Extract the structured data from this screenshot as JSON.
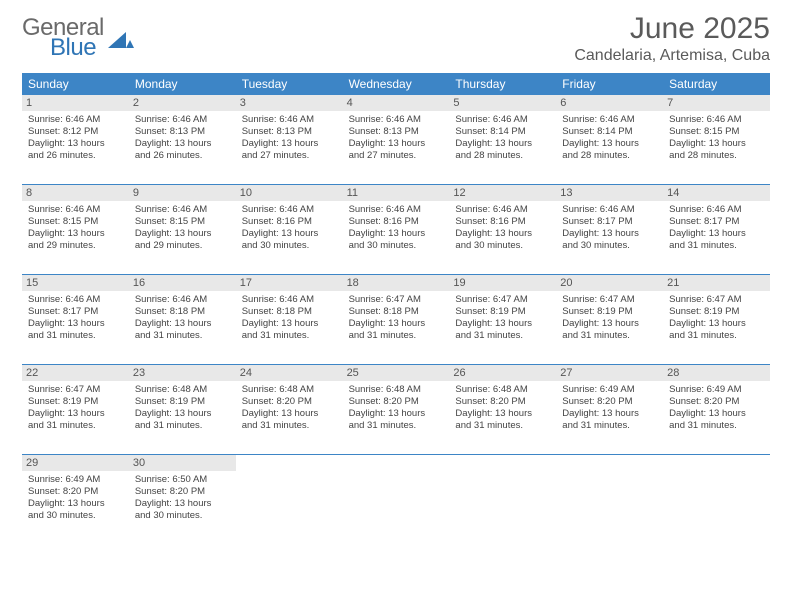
{
  "logo": {
    "word1": "General",
    "word2": "Blue",
    "mark_color": "#2f75b5"
  },
  "title": "June 2025",
  "location": "Candelaria, Artemisa, Cuba",
  "colors": {
    "header_bg": "#3d85c6",
    "header_text": "#ffffff",
    "daynum_bg": "#e8e8e8",
    "week_border": "#3d85c6",
    "text": "#444444"
  },
  "weekdays": [
    "Sunday",
    "Monday",
    "Tuesday",
    "Wednesday",
    "Thursday",
    "Friday",
    "Saturday"
  ],
  "weeks": [
    [
      {
        "n": "1",
        "sr": "Sunrise: 6:46 AM",
        "ss": "Sunset: 8:12 PM",
        "dl": "Daylight: 13 hours and 26 minutes."
      },
      {
        "n": "2",
        "sr": "Sunrise: 6:46 AM",
        "ss": "Sunset: 8:13 PM",
        "dl": "Daylight: 13 hours and 26 minutes."
      },
      {
        "n": "3",
        "sr": "Sunrise: 6:46 AM",
        "ss": "Sunset: 8:13 PM",
        "dl": "Daylight: 13 hours and 27 minutes."
      },
      {
        "n": "4",
        "sr": "Sunrise: 6:46 AM",
        "ss": "Sunset: 8:13 PM",
        "dl": "Daylight: 13 hours and 27 minutes."
      },
      {
        "n": "5",
        "sr": "Sunrise: 6:46 AM",
        "ss": "Sunset: 8:14 PM",
        "dl": "Daylight: 13 hours and 28 minutes."
      },
      {
        "n": "6",
        "sr": "Sunrise: 6:46 AM",
        "ss": "Sunset: 8:14 PM",
        "dl": "Daylight: 13 hours and 28 minutes."
      },
      {
        "n": "7",
        "sr": "Sunrise: 6:46 AM",
        "ss": "Sunset: 8:15 PM",
        "dl": "Daylight: 13 hours and 28 minutes."
      }
    ],
    [
      {
        "n": "8",
        "sr": "Sunrise: 6:46 AM",
        "ss": "Sunset: 8:15 PM",
        "dl": "Daylight: 13 hours and 29 minutes."
      },
      {
        "n": "9",
        "sr": "Sunrise: 6:46 AM",
        "ss": "Sunset: 8:15 PM",
        "dl": "Daylight: 13 hours and 29 minutes."
      },
      {
        "n": "10",
        "sr": "Sunrise: 6:46 AM",
        "ss": "Sunset: 8:16 PM",
        "dl": "Daylight: 13 hours and 30 minutes."
      },
      {
        "n": "11",
        "sr": "Sunrise: 6:46 AM",
        "ss": "Sunset: 8:16 PM",
        "dl": "Daylight: 13 hours and 30 minutes."
      },
      {
        "n": "12",
        "sr": "Sunrise: 6:46 AM",
        "ss": "Sunset: 8:16 PM",
        "dl": "Daylight: 13 hours and 30 minutes."
      },
      {
        "n": "13",
        "sr": "Sunrise: 6:46 AM",
        "ss": "Sunset: 8:17 PM",
        "dl": "Daylight: 13 hours and 30 minutes."
      },
      {
        "n": "14",
        "sr": "Sunrise: 6:46 AM",
        "ss": "Sunset: 8:17 PM",
        "dl": "Daylight: 13 hours and 31 minutes."
      }
    ],
    [
      {
        "n": "15",
        "sr": "Sunrise: 6:46 AM",
        "ss": "Sunset: 8:17 PM",
        "dl": "Daylight: 13 hours and 31 minutes."
      },
      {
        "n": "16",
        "sr": "Sunrise: 6:46 AM",
        "ss": "Sunset: 8:18 PM",
        "dl": "Daylight: 13 hours and 31 minutes."
      },
      {
        "n": "17",
        "sr": "Sunrise: 6:46 AM",
        "ss": "Sunset: 8:18 PM",
        "dl": "Daylight: 13 hours and 31 minutes."
      },
      {
        "n": "18",
        "sr": "Sunrise: 6:47 AM",
        "ss": "Sunset: 8:18 PM",
        "dl": "Daylight: 13 hours and 31 minutes."
      },
      {
        "n": "19",
        "sr": "Sunrise: 6:47 AM",
        "ss": "Sunset: 8:19 PM",
        "dl": "Daylight: 13 hours and 31 minutes."
      },
      {
        "n": "20",
        "sr": "Sunrise: 6:47 AM",
        "ss": "Sunset: 8:19 PM",
        "dl": "Daylight: 13 hours and 31 minutes."
      },
      {
        "n": "21",
        "sr": "Sunrise: 6:47 AM",
        "ss": "Sunset: 8:19 PM",
        "dl": "Daylight: 13 hours and 31 minutes."
      }
    ],
    [
      {
        "n": "22",
        "sr": "Sunrise: 6:47 AM",
        "ss": "Sunset: 8:19 PM",
        "dl": "Daylight: 13 hours and 31 minutes."
      },
      {
        "n": "23",
        "sr": "Sunrise: 6:48 AM",
        "ss": "Sunset: 8:19 PM",
        "dl": "Daylight: 13 hours and 31 minutes."
      },
      {
        "n": "24",
        "sr": "Sunrise: 6:48 AM",
        "ss": "Sunset: 8:20 PM",
        "dl": "Daylight: 13 hours and 31 minutes."
      },
      {
        "n": "25",
        "sr": "Sunrise: 6:48 AM",
        "ss": "Sunset: 8:20 PM",
        "dl": "Daylight: 13 hours and 31 minutes."
      },
      {
        "n": "26",
        "sr": "Sunrise: 6:48 AM",
        "ss": "Sunset: 8:20 PM",
        "dl": "Daylight: 13 hours and 31 minutes."
      },
      {
        "n": "27",
        "sr": "Sunrise: 6:49 AM",
        "ss": "Sunset: 8:20 PM",
        "dl": "Daylight: 13 hours and 31 minutes."
      },
      {
        "n": "28",
        "sr": "Sunrise: 6:49 AM",
        "ss": "Sunset: 8:20 PM",
        "dl": "Daylight: 13 hours and 31 minutes."
      }
    ],
    [
      {
        "n": "29",
        "sr": "Sunrise: 6:49 AM",
        "ss": "Sunset: 8:20 PM",
        "dl": "Daylight: 13 hours and 30 minutes."
      },
      {
        "n": "30",
        "sr": "Sunrise: 6:50 AM",
        "ss": "Sunset: 8:20 PM",
        "dl": "Daylight: 13 hours and 30 minutes."
      },
      null,
      null,
      null,
      null,
      null
    ]
  ]
}
